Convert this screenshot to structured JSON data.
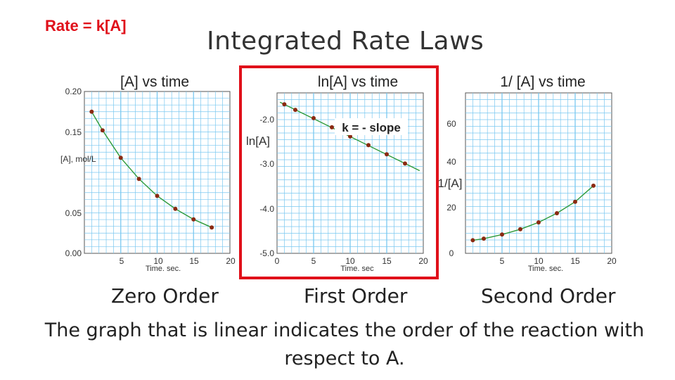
{
  "header": {
    "rate_equation": "Rate = k[A]",
    "title": "Integrated Rate Laws"
  },
  "captions": {
    "zero": "Zero Order",
    "first": "First Order",
    "second": "Second Order"
  },
  "footer": "The graph that is linear indicates the order of the reaction with respect to A.",
  "colors": {
    "highlight": "#e0101a",
    "grid": "#7ac8f0",
    "line": "#2e9a3a",
    "point": "#8b2a12"
  },
  "chart_data": [
    {
      "type": "line",
      "title": "[A] vs time",
      "xlabel": "Time. sec.",
      "ylabel": "[A], mol/L",
      "xlim": [
        0,
        20
      ],
      "ylim": [
        0.0,
        0.2
      ],
      "xticks": [
        "5",
        "10",
        "15",
        "20"
      ],
      "yticks": [
        "0.00",
        "0.05",
        "0.15",
        "0.20"
      ],
      "grid": true,
      "x": [
        1,
        2.5,
        5,
        7.5,
        10,
        12.5,
        15,
        17.5
      ],
      "y": [
        0.175,
        0.152,
        0.118,
        0.092,
        0.071,
        0.055,
        0.042,
        0.032
      ]
    },
    {
      "type": "line",
      "title": "ln[A] vs time",
      "xlabel": "Time. sec",
      "ylabel": "ln[A]",
      "annotation": "k = - slope",
      "xlim": [
        0,
        20
      ],
      "ylim": [
        -5.0,
        -1.5
      ],
      "xticks": [
        "0",
        "5",
        "10",
        "15",
        "20"
      ],
      "yticks": [
        "-2.0",
        "-3.0",
        "-4.0",
        "-5.0"
      ],
      "grid": true,
      "x": [
        1,
        2.5,
        5,
        7.5,
        10,
        12.5,
        15,
        17.5
      ],
      "y": [
        -1.75,
        -1.87,
        -2.05,
        -2.25,
        -2.45,
        -2.64,
        -2.84,
        -3.04
      ]
    },
    {
      "type": "line",
      "title": "1/ [A] vs time",
      "xlabel": "Time. sec.",
      "ylabel": "1/[A]",
      "xlim": [
        0,
        20
      ],
      "ylim": [
        0,
        70
      ],
      "xticks": [
        "5",
        "10",
        "15",
        "20"
      ],
      "yticks": [
        "0",
        "20",
        "40",
        "60"
      ],
      "grid": true,
      "x": [
        1,
        2.5,
        5,
        7.5,
        10,
        12.5,
        15,
        17.5
      ],
      "y": [
        5.7,
        6.4,
        8.2,
        10.5,
        13.5,
        17.5,
        22.5,
        29.5
      ]
    }
  ]
}
